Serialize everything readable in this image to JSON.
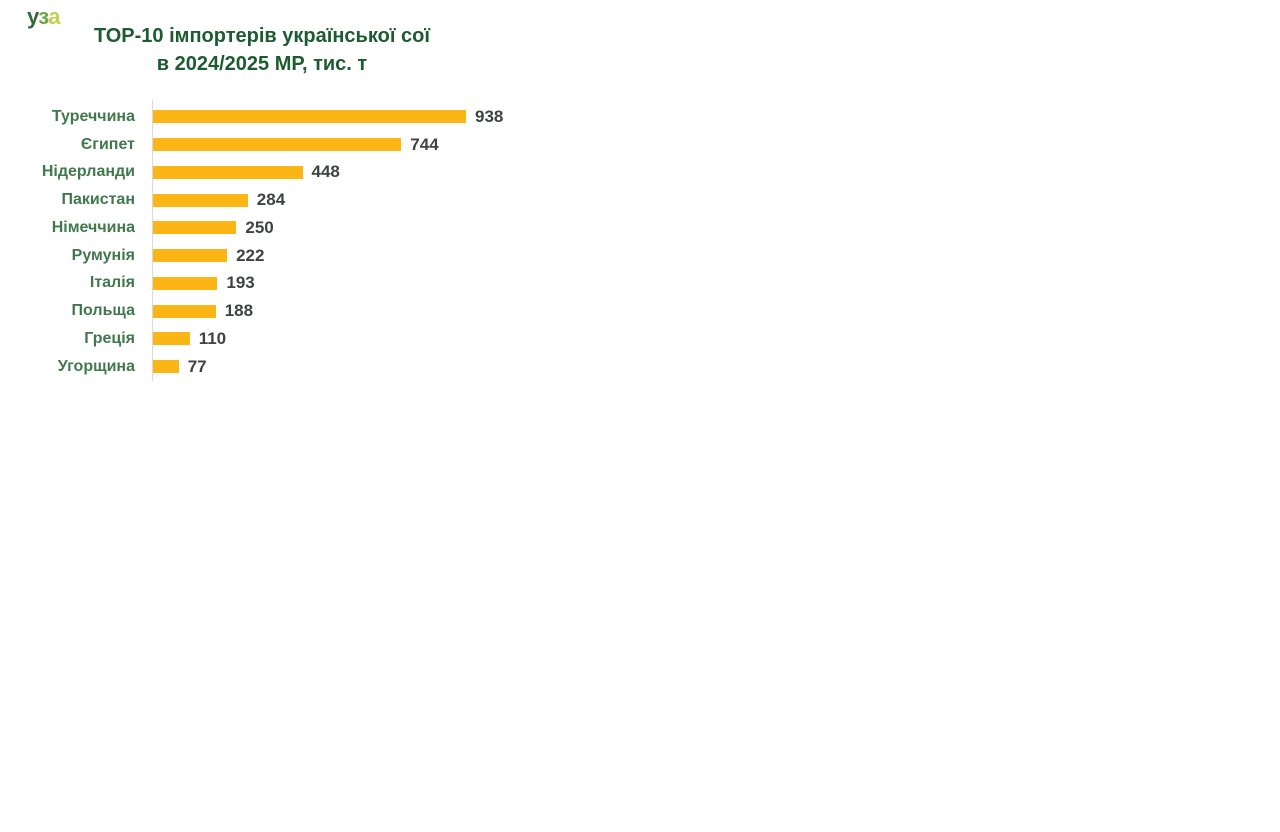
{
  "logo": {
    "name": "УЗА",
    "parts": [
      {
        "t": "у",
        "color": "#35683b"
      },
      {
        "t": "з",
        "color": "#69a744"
      },
      {
        "t": "а",
        "color": "#c3d14e"
      }
    ]
  },
  "chart_data": {
    "type": "bar",
    "orientation": "horizontal",
    "title": "ТОР-10 імпортерів української сої в 2024/2025 МР, тис. т",
    "title_lines": [
      "ТОР-10 імпортерів української сої",
      "в 2024/2025 МР, тис. т"
    ],
    "unit": "тис. т",
    "categories": [
      "Туреччина",
      "Єгипет",
      "Нідерланди",
      "Пакистан",
      "Німеччина",
      "Румунія",
      "Італія",
      "Польща",
      "Греція",
      "Угорщина"
    ],
    "values": [
      938,
      744,
      448,
      284,
      250,
      222,
      193,
      188,
      110,
      77
    ],
    "data_labels": true,
    "grid": false,
    "legend": false,
    "xlim": [
      0,
      938
    ],
    "colors": {
      "bar": "#fbb515",
      "category_label": "#41794d",
      "value_label": "#404243",
      "title": "#1d5b31",
      "axis_line": "#d9d9d9",
      "background": "#ffffff"
    }
  }
}
